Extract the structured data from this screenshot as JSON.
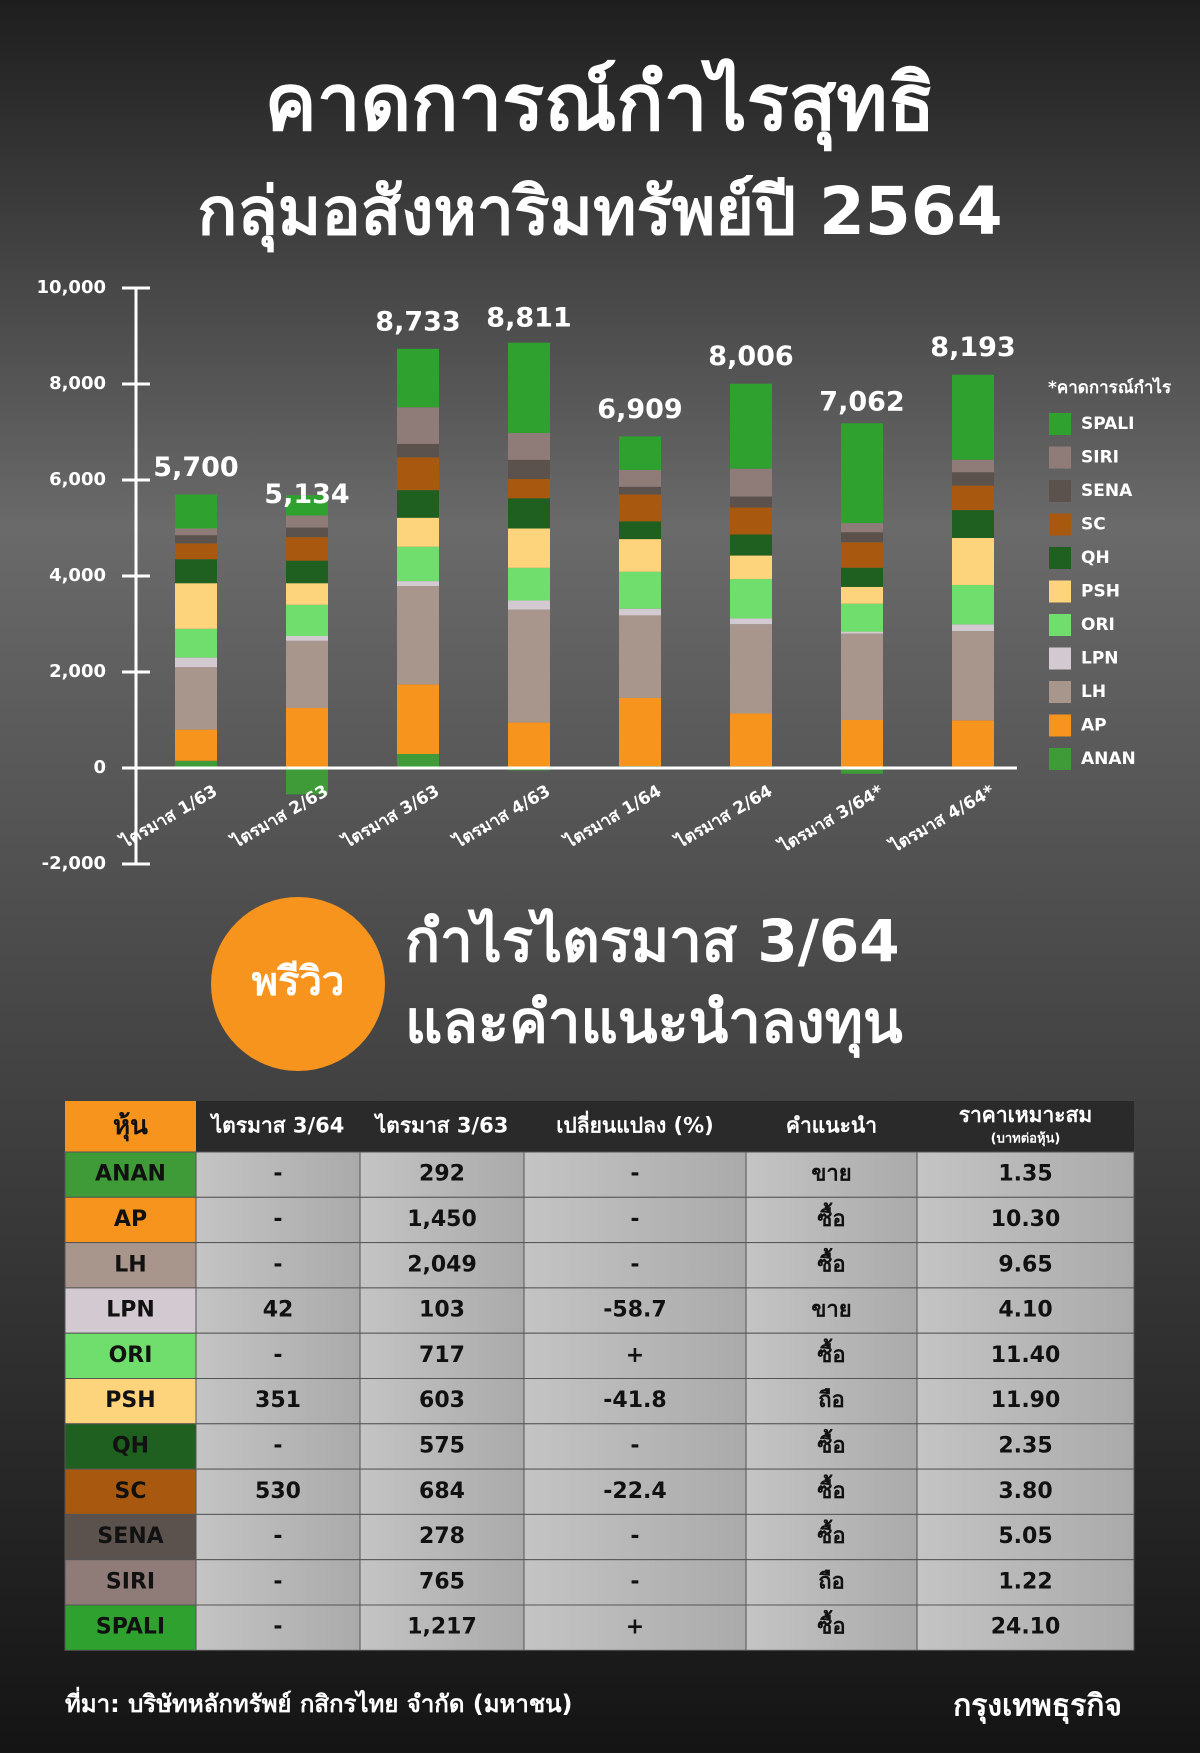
{
  "header": {
    "title_line1": "คาดการณ์กำไรสุทธิ",
    "title_line2": "กลุ่มอสังหาริมทรัพย์ปี 2564"
  },
  "chart_data": {
    "type": "stacked_bar",
    "categories": [
      "ไตรมาส 1/63",
      "ไตรมาส 2/63",
      "ไตรมาส 3/63",
      "ไตรมาส 4/63",
      "ไตรมาส 1/64",
      "ไตรมาส 2/64",
      "ไตรมาส 3/64*",
      "ไตรมาส 4/64*"
    ],
    "series": [
      {
        "name": "ANAN",
        "color": "#3f9a38",
        "values": [
          150,
          -550,
          292,
          -50,
          39,
          36,
          -120,
          33
        ]
      },
      {
        "name": "AP",
        "color": "#f7941d",
        "values": [
          650,
          1250,
          1450,
          950,
          1420,
          1100,
          1000,
          960
        ]
      },
      {
        "name": "LH",
        "color": "#a8958c",
        "values": [
          1300,
          1400,
          2049,
          2350,
          1720,
          1860,
          1800,
          1860
        ]
      },
      {
        "name": "LPN",
        "color": "#d3c9d0",
        "values": [
          200,
          100,
          103,
          190,
          140,
          120,
          42,
          140
        ]
      },
      {
        "name": "ORI",
        "color": "#6fde6c",
        "values": [
          600,
          650,
          717,
          680,
          770,
          820,
          580,
          820
        ]
      },
      {
        "name": "PSH",
        "color": "#fdd37b",
        "values": [
          950,
          450,
          603,
          820,
          680,
          490,
          351,
          980
        ]
      },
      {
        "name": "QH",
        "color": "#1f5f1f",
        "values": [
          500,
          470,
          575,
          630,
          370,
          440,
          400,
          580
        ]
      },
      {
        "name": "SC",
        "color": "#a8590f",
        "values": [
          330,
          490,
          684,
          400,
          560,
          560,
          530,
          510
        ]
      },
      {
        "name": "SENA",
        "color": "#5c524d",
        "values": [
          170,
          200,
          278,
          400,
          160,
          230,
          210,
          280
        ]
      },
      {
        "name": "SIRI",
        "color": "#8f7c79",
        "values": [
          140,
          250,
          765,
          560,
          350,
          580,
          190,
          260
        ]
      },
      {
        "name": "SPALI",
        "color": "#2fa12f",
        "values": [
          710,
          424,
          1217,
          1881,
          700,
          1770,
          2079,
          1770
        ]
      }
    ],
    "totals": {
      "values": [
        5700,
        5134,
        8733,
        8811,
        6909,
        8006,
        7062,
        8193
      ],
      "value_labels": [
        "5,700",
        "5,134",
        "8,733",
        "8,811",
        "6,909",
        "8,006",
        "7,062",
        "8,193"
      ]
    },
    "legend_title": "*คาดการณ์กำไร",
    "ylim": [
      -2000,
      10000
    ],
    "yticks": [
      {
        "value": -2000,
        "label": "-2,000"
      },
      0,
      {
        "value": 2000,
        "label": "2,000"
      },
      {
        "value": 4000,
        "label": "4,000"
      },
      {
        "value": 6000,
        "label": "6,000"
      },
      {
        "value": 8000,
        "label": "8,000"
      },
      {
        "value": 10000,
        "label": "10,000"
      }
    ]
  },
  "preview": {
    "badge": "พรีวิว",
    "title_line1": "กำไรไตรมาส 3/64",
    "title_line2": "และคำแนะนำลงทุน"
  },
  "table": {
    "columns": [
      "หุ้น",
      "ไตรมาส 3/64",
      "ไตรมาส 3/63",
      "เปลี่ยนแปลง (%)",
      "คำแนะนำ",
      "ราคาเหมาะสม"
    ],
    "unit_note": "(บาทต่อหุ้น)",
    "rows": [
      [
        "ANAN",
        "-",
        "292",
        "-",
        "ขาย",
        "1.35"
      ],
      [
        "AP",
        "-",
        "1,450",
        "-",
        "ซื้อ",
        "10.30"
      ],
      [
        "LH",
        "-",
        "2,049",
        "-",
        "ซื้อ",
        "9.65"
      ],
      [
        "LPN",
        "42",
        "103",
        "-58.7",
        "ขาย",
        "4.10"
      ],
      [
        "ORI",
        "-",
        "717",
        "+",
        "ซื้อ",
        "11.40"
      ],
      [
        "PSH",
        "351",
        "603",
        "-41.8",
        "ถือ",
        "11.90"
      ],
      [
        "QH",
        "-",
        "575",
        "-",
        "ซื้อ",
        "2.35"
      ],
      [
        "SC",
        "530",
        "684",
        "-22.4",
        "ซื้อ",
        "3.80"
      ],
      [
        "SENA",
        "-",
        "278",
        "-",
        "ซื้อ",
        "5.05"
      ],
      [
        "SIRI",
        "-",
        "765",
        "-",
        "ถือ",
        "1.22"
      ],
      [
        "SPALI",
        "-",
        "1,217",
        "+",
        "ซื้อ",
        "24.10"
      ]
    ]
  },
  "footer": {
    "source": "ที่มา: บริษัทหลักทรัพย์ กสิกรไทย จำกัด (มหาชน)",
    "brand": "กรุงเทพธุรกิจ"
  }
}
